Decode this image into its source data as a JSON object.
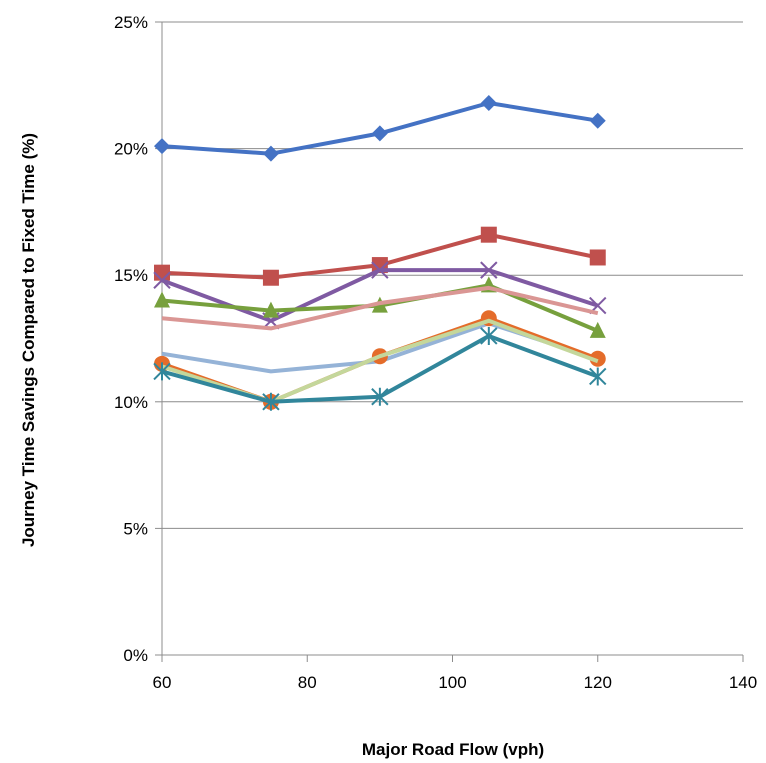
{
  "chart_data": {
    "type": "line",
    "xlabel": "Major Road Flow (vph)",
    "ylabel": "Journey Time Savings Compared to Fixed Time  (%)",
    "xlim": [
      60,
      140
    ],
    "ylim": [
      0,
      25
    ],
    "x_ticks": [
      "60",
      "80",
      "100",
      "120",
      "140"
    ],
    "y_ticks": [
      "0%",
      "5%",
      "10%",
      "15%",
      "20%",
      "25%"
    ],
    "y_tick_values": [
      0,
      5,
      10,
      15,
      20,
      25
    ],
    "x_tick_values": [
      60,
      80,
      100,
      120,
      140
    ],
    "grid": "horizontal",
    "legend": "none",
    "x": [
      60,
      75,
      90,
      105,
      120
    ],
    "series": [
      {
        "color": "#4472C4",
        "marker": "diamond",
        "values": [
          20.1,
          19.8,
          20.6,
          21.8,
          21.1
        ]
      },
      {
        "color": "#C0504D",
        "marker": "square",
        "values": [
          15.1,
          14.9,
          15.4,
          16.6,
          15.7
        ]
      },
      {
        "color": "#7F5AA2",
        "marker": "x",
        "values": [
          14.8,
          13.2,
          15.2,
          15.2,
          13.8
        ]
      },
      {
        "color": "#77A03D",
        "marker": "triangle",
        "values": [
          14.0,
          13.6,
          13.8,
          14.6,
          12.8
        ]
      },
      {
        "color": "#DA9694",
        "marker": "none",
        "values": [
          13.3,
          12.9,
          13.9,
          14.5,
          13.5
        ]
      },
      {
        "color": "#95B3D7",
        "marker": "none",
        "values": [
          11.9,
          11.2,
          11.6,
          13.1,
          11.7
        ]
      },
      {
        "color": "#E46C2A",
        "marker": "circle",
        "values": [
          11.5,
          10.0,
          11.8,
          13.3,
          11.7
        ]
      },
      {
        "color": "#C4D79B",
        "marker": "none",
        "values": [
          11.4,
          10.0,
          11.8,
          13.2,
          11.6
        ]
      },
      {
        "color": "#31869B",
        "marker": "star",
        "values": [
          11.2,
          10.0,
          10.2,
          12.6,
          11.0
        ]
      }
    ]
  }
}
